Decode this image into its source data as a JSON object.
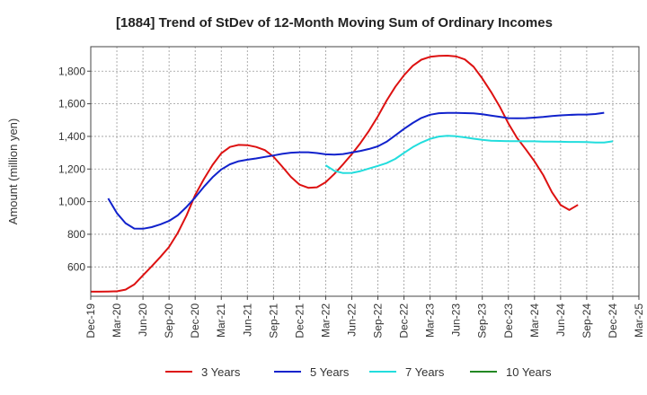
{
  "chart_data": {
    "type": "line",
    "title": "[1884]  Trend of StDev of 12-Month Moving Sum of Ordinary Incomes",
    "xlabel": "",
    "ylabel": "Amount (million yen)",
    "ylim": [
      420,
      1950
    ],
    "yticks": [
      600,
      800,
      1000,
      1200,
      1400,
      1600,
      1800
    ],
    "ytick_labels": [
      "600",
      "800",
      "1,000",
      "1,200",
      "1,400",
      "1,600",
      "1,800"
    ],
    "xtick_labels": [
      "Dec-19",
      "Mar-20",
      "Jun-20",
      "Sep-20",
      "Dec-20",
      "Mar-21",
      "Jun-21",
      "Sep-21",
      "Dec-21",
      "Mar-22",
      "Jun-22",
      "Sep-22",
      "Dec-22",
      "Mar-23",
      "Jun-23",
      "Sep-23",
      "Dec-23",
      "Mar-24",
      "Jun-24",
      "Sep-24",
      "Dec-24",
      "Mar-25"
    ],
    "x_start_label": "Dec-19",
    "x_months_total": 63,
    "grid": true,
    "legend_position": "bottom",
    "series": [
      {
        "name": "3 Years",
        "color": "#dd1111",
        "start_month": 0,
        "values": [
          448,
          448,
          449,
          450,
          461,
          492,
          548,
          603,
          661,
          722,
          808,
          914,
          1041,
          1138,
          1226,
          1296,
          1335,
          1348,
          1346,
          1335,
          1316,
          1276,
          1215,
          1152,
          1104,
          1085,
          1088,
          1119,
          1170,
          1229,
          1291,
          1360,
          1436,
          1523,
          1619,
          1704,
          1775,
          1833,
          1870,
          1888,
          1894,
          1895,
          1890,
          1872,
          1827,
          1755,
          1673,
          1583,
          1479,
          1391,
          1321,
          1247,
          1163,
          1058,
          979,
          949,
          980
        ]
      },
      {
        "name": "5 Years",
        "color": "#1122cc",
        "start_month": 2,
        "values": [
          1020,
          930,
          868,
          835,
          834,
          844,
          861,
          882,
          916,
          967,
          1026,
          1091,
          1150,
          1197,
          1229,
          1248,
          1257,
          1265,
          1274,
          1283,
          1293,
          1300,
          1303,
          1303,
          1298,
          1290,
          1288,
          1292,
          1301,
          1311,
          1323,
          1339,
          1367,
          1406,
          1446,
          1482,
          1513,
          1533,
          1542,
          1544,
          1544,
          1543,
          1541,
          1536,
          1528,
          1520,
          1512,
          1511,
          1512,
          1515,
          1519,
          1525,
          1529,
          1532,
          1534,
          1534,
          1537,
          1545
        ]
      },
      {
        "name": "7 Years",
        "color": "#22dddd",
        "start_month": 27,
        "values": [
          1223,
          1189,
          1175,
          1176,
          1187,
          1203,
          1219,
          1236,
          1262,
          1299,
          1334,
          1362,
          1385,
          1399,
          1404,
          1401,
          1394,
          1386,
          1379,
          1374,
          1372,
          1371,
          1371,
          1370,
          1370,
          1368,
          1368,
          1367,
          1366,
          1366,
          1365,
          1362,
          1363,
          1370
        ]
      },
      {
        "name": "10 Years",
        "color": "#228822",
        "start_month": 0,
        "values": []
      }
    ]
  }
}
